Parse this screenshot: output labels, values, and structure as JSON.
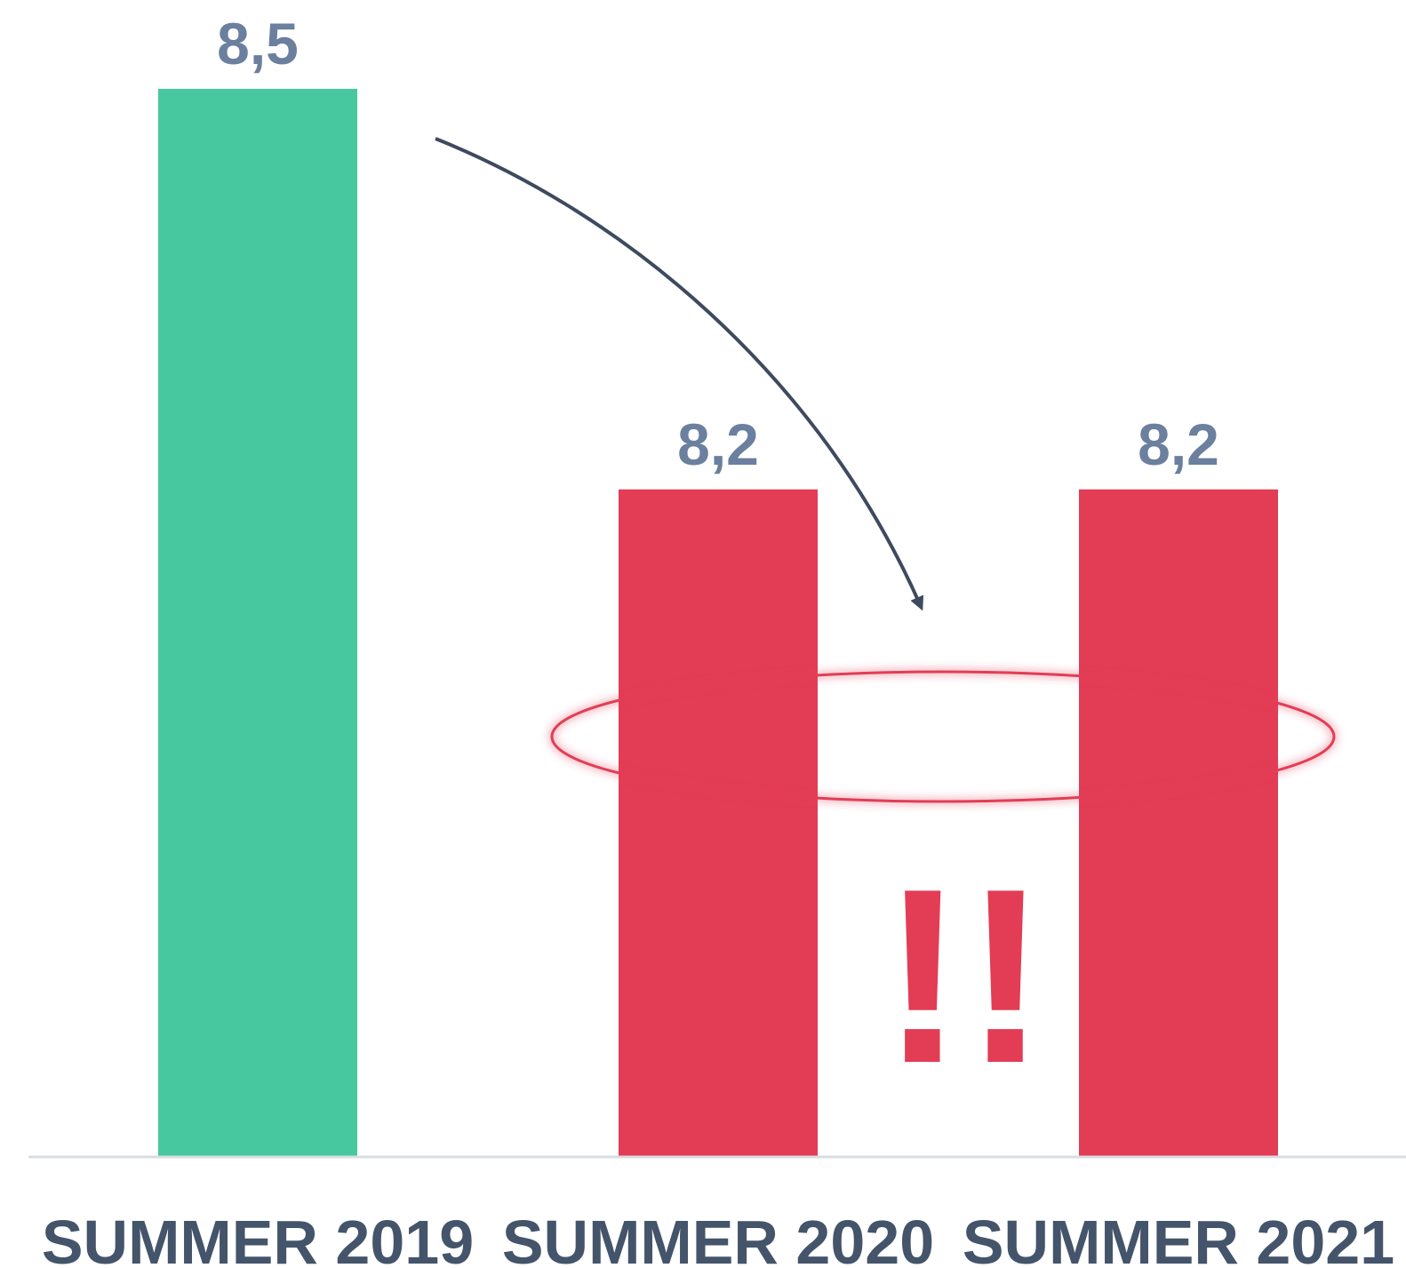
{
  "chart_data": {
    "type": "bar",
    "categories": [
      "SUMMER 2019",
      "SUMMER 2020",
      "SUMMER 2021"
    ],
    "values": [
      8.5,
      8.2,
      8.2
    ],
    "value_labels": [
      "8,5",
      "8,2",
      "8,2"
    ],
    "bar_colors": [
      "#48c89f",
      "#e33c55",
      "#e33c55"
    ],
    "ylim": [
      7.7,
      8.5
    ],
    "title": "",
    "xlabel": "",
    "ylabel": "",
    "grid": false,
    "annotations": {
      "arrow": "curved arrow from SUMMER 2019 bar down toward SUMMER 2020/2021",
      "highlight_ellipse": "encircles 8,2 labels",
      "emphasis_text": "!!",
      "emphasis_color": "#e33c55"
    }
  },
  "colors": {
    "axis_line": "#d9dde3",
    "arrow": "#3e4a5e",
    "ellipse_stroke": "#e33c55",
    "value_text": "#6b7f9e",
    "category_text": "#44546a"
  }
}
